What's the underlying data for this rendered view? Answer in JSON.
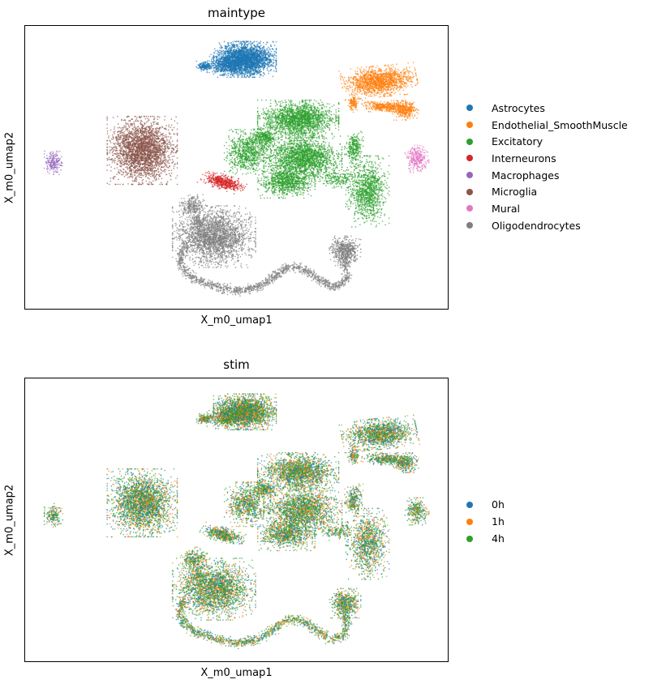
{
  "figure": {
    "background": "#ffffff"
  },
  "plots": [
    {
      "title": "maintype",
      "xlabel": "X_m0_umap1",
      "ylabel": "X_m0_umap2",
      "legend": {
        "items": [
          {
            "label": "Astrocytes",
            "color": "#1f77b4"
          },
          {
            "label": "Endothelial_SmoothMuscle",
            "color": "#ff7f0e"
          },
          {
            "label": "Excitatory",
            "color": "#2ca02c"
          },
          {
            "label": "Interneurons",
            "color": "#d62728"
          },
          {
            "label": "Macrophages",
            "color": "#9467bd"
          },
          {
            "label": "Microglia",
            "color": "#8c564b"
          },
          {
            "label": "Mural",
            "color": "#e377c2"
          },
          {
            "label": "Oligodendrocytes",
            "color": "#7f7f7f"
          }
        ]
      }
    },
    {
      "title": "stim",
      "xlabel": "X_m0_umap1",
      "ylabel": "X_m0_umap2",
      "legend": {
        "items": [
          {
            "label": "0h",
            "color": "#1f77b4"
          },
          {
            "label": "1h",
            "color": "#ff7f0e"
          },
          {
            "label": "4h",
            "color": "#2ca02c"
          }
        ]
      }
    }
  ],
  "chart_data": [
    {
      "type": "scatter",
      "title": "maintype",
      "xlabel": "X_m0_umap1",
      "ylabel": "X_m0_umap2",
      "axes": {
        "ticks_shown": false,
        "frame": true,
        "grid": false
      },
      "legend_position": "right-outside",
      "blob_format": "[cx, cy, rx, ry, n, rot_deg] in axes-fraction coords (y down), rx/ry = approx 2.2-sigma extent",
      "series": [
        {
          "name": "Astrocytes",
          "color": "#1f77b4",
          "blobs": [
            [
              0.52,
              0.118,
              0.068,
              0.058,
              2600
            ],
            [
              0.474,
              0.138,
              0.04,
              0.034,
              500
            ],
            [
              0.425,
              0.142,
              0.018,
              0.016,
              160
            ]
          ]
        },
        {
          "name": "Endothelial_SmoothMuscle",
          "color": "#ff7f0e",
          "blobs": [
            [
              0.838,
              0.196,
              0.082,
              0.05,
              1500,
              -8
            ],
            [
              0.776,
              0.272,
              0.012,
              0.03,
              130
            ],
            [
              0.856,
              0.285,
              0.055,
              0.02,
              400,
              5
            ],
            [
              0.9,
              0.298,
              0.028,
              0.032,
              320
            ]
          ]
        },
        {
          "name": "Excitatory",
          "color": "#2ca02c",
          "blobs": [
            [
              0.646,
              0.33,
              0.088,
              0.062,
              1900
            ],
            [
              0.526,
              0.445,
              0.05,
              0.072,
              800
            ],
            [
              0.657,
              0.468,
              0.085,
              0.082,
              2100
            ],
            [
              0.618,
              0.552,
              0.062,
              0.052,
              900
            ],
            [
              0.566,
              0.392,
              0.03,
              0.03,
              300
            ],
            [
              0.778,
              0.43,
              0.02,
              0.052,
              280
            ],
            [
              0.81,
              0.585,
              0.047,
              0.115,
              1100
            ],
            [
              0.742,
              0.54,
              0.035,
              0.03,
              160
            ]
          ]
        },
        {
          "name": "Interneurons",
          "color": "#d62728",
          "blobs": [
            [
              0.468,
              0.552,
              0.05,
              0.024,
              520,
              25
            ]
          ]
        },
        {
          "name": "Macrophages",
          "color": "#9467bd",
          "blobs": [
            [
              0.067,
              0.484,
              0.02,
              0.038,
              200
            ]
          ]
        },
        {
          "name": "Microglia",
          "color": "#8c564b",
          "blobs": [
            [
              0.277,
              0.44,
              0.076,
              0.11,
              2700
            ]
          ]
        },
        {
          "name": "Mural",
          "color": "#e377c2",
          "blobs": [
            [
              0.927,
              0.47,
              0.026,
              0.044,
              300
            ]
          ]
        },
        {
          "name": "Oligodendrocytes",
          "color": "#7f7f7f",
          "blobs": [
            [
              0.398,
              0.638,
              0.03,
              0.038,
              260
            ],
            [
              0.408,
              0.695,
              0.014,
              0.028,
              90
            ],
            [
              0.447,
              0.745,
              0.09,
              0.1,
              2500
            ],
            [
              0.757,
              0.795,
              0.034,
              0.048,
              550
            ]
          ],
          "paths": [
            {
              "points": [
                [
                  0.379,
                  0.776
                ],
                [
                  0.366,
                  0.814
                ],
                [
                  0.37,
                  0.852
                ],
                [
                  0.392,
                  0.885
                ],
                [
                  0.405,
                  0.899
                ],
                [
                  0.456,
                  0.923
                ],
                [
                  0.507,
                  0.937
                ],
                [
                  0.558,
                  0.918
                ],
                [
                  0.59,
                  0.885
                ],
                [
                  0.615,
                  0.857
                ],
                [
                  0.647,
                  0.852
                ],
                [
                  0.672,
                  0.871
                ],
                [
                  0.698,
                  0.899
                ],
                [
                  0.723,
                  0.923
                ],
                [
                  0.749,
                  0.914
                ],
                [
                  0.762,
                  0.885
                ],
                [
                  0.758,
                  0.857
                ],
                [
                  0.755,
                  0.82
                ]
              ],
              "jitter": [
                0.005,
                0.008
              ],
              "n": 1400
            }
          ]
        }
      ]
    },
    {
      "type": "scatter",
      "title": "stim",
      "xlabel": "X_m0_umap1",
      "ylabel": "X_m0_umap2",
      "axes": {
        "ticks_shown": false,
        "frame": true,
        "grid": false
      },
      "legend_position": "right-outside",
      "geometry_from": "maintype",
      "series": [
        {
          "name": "0h",
          "color": "#1f77b4",
          "weight": 0.25
        },
        {
          "name": "1h",
          "color": "#ff7f0e",
          "weight": 0.28
        },
        {
          "name": "4h",
          "color": "#2ca02c",
          "weight": 0.47
        }
      ]
    }
  ]
}
